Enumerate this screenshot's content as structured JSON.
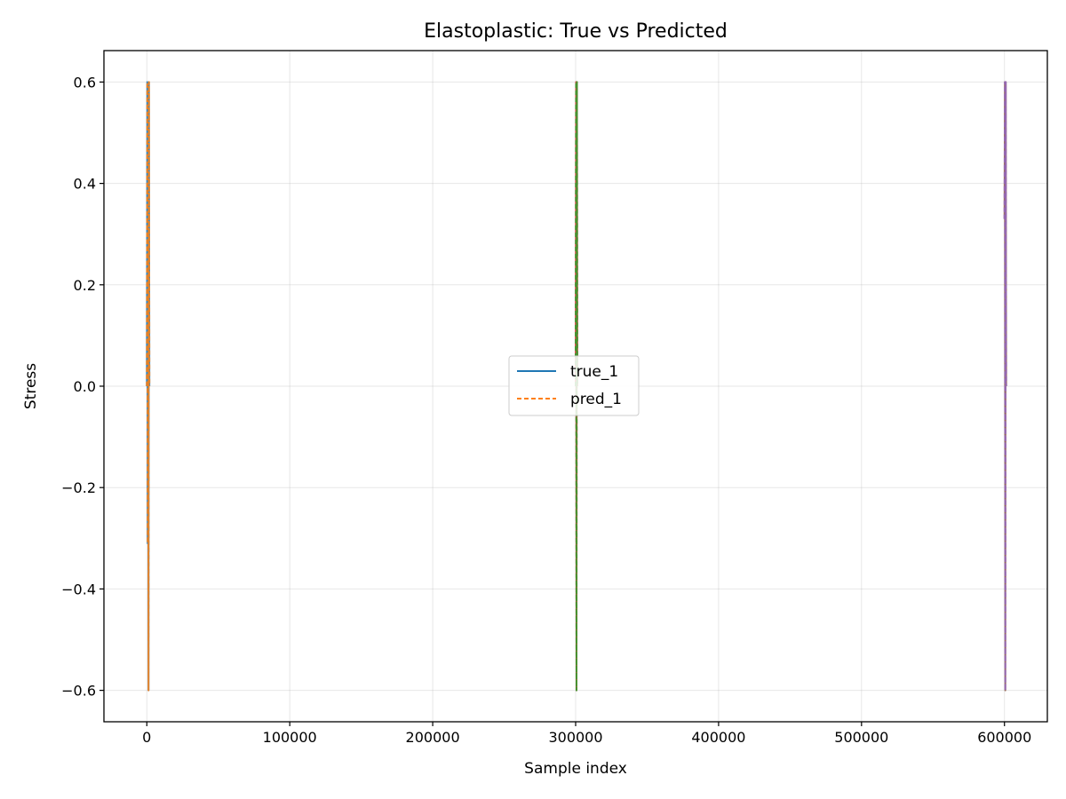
{
  "chart_data": {
    "type": "line",
    "title": "Elastoplastic: True vs Predicted",
    "xlabel": "Sample index",
    "ylabel": "Stress",
    "xlim": [
      -30000,
      630000
    ],
    "ylim": [
      -0.662,
      0.662
    ],
    "xticks": [
      0,
      100000,
      200000,
      300000,
      400000,
      500000,
      600000
    ],
    "xtick_labels": [
      "0",
      "100000",
      "200000",
      "300000",
      "400000",
      "500000",
      "600000"
    ],
    "yticks": [
      -0.6,
      -0.4,
      -0.2,
      0.0,
      0.2,
      0.4,
      0.6
    ],
    "ytick_labels": [
      "−0.6",
      "−0.4",
      "−0.2",
      "0.0",
      "0.2",
      "0.4",
      "0.6"
    ],
    "grid": true,
    "legend_position": "center",
    "series": [
      {
        "name": "true_1",
        "color": "#1f77b4",
        "style": "solid",
        "in_legend": true,
        "segments": [
          {
            "x": [
              0,
              300,
              600,
              900,
              1200,
              1500,
              1800
            ],
            "y": [
              0.0,
              0.6,
              -0.31,
              0.3,
              -0.6,
              0.6,
              0.0
            ]
          }
        ]
      },
      {
        "name": "pred_1",
        "color": "#ff7f0e",
        "style": "dashed",
        "in_legend": true,
        "segments": [
          {
            "x": [
              0,
              300,
              600,
              900,
              1200,
              1500,
              1800
            ],
            "y": [
              0.0,
              0.6,
              -0.31,
              0.3,
              -0.6,
              0.6,
              0.0
            ]
          }
        ]
      },
      {
        "name": "",
        "color": "#d62728",
        "style": "solid",
        "in_legend": false,
        "segments": [
          {
            "x": [
              300000,
              300300,
              300600,
              300900,
              301200
            ],
            "y": [
              0.0,
              0.6,
              -0.6,
              0.6,
              0.0
            ]
          }
        ]
      },
      {
        "name": "",
        "color": "#2ca02c",
        "style": "dashed",
        "in_legend": false,
        "segments": [
          {
            "x": [
              300000,
              300300,
              300600,
              300900,
              301200
            ],
            "y": [
              0.0,
              0.6,
              -0.6,
              0.6,
              0.0
            ]
          }
        ]
      },
      {
        "name": "",
        "color": "#8c564b",
        "style": "solid",
        "in_legend": false,
        "segments": [
          {
            "x": [
              600000,
              600300,
              600600,
              600900,
              601200
            ],
            "y": [
              0.33,
              0.6,
              -0.6,
              0.6,
              0.0
            ]
          }
        ]
      },
      {
        "name": "",
        "color": "#9467bd",
        "style": "dashed",
        "in_legend": false,
        "segments": [
          {
            "x": [
              600000,
              600300,
              600600,
              600900,
              601200
            ],
            "y": [
              0.33,
              0.6,
              -0.6,
              0.6,
              0.0
            ]
          }
        ]
      }
    ]
  }
}
